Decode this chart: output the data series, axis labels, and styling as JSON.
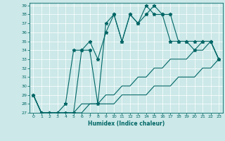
{
  "xlabel": "Humidex (Indice chaleur)",
  "bg_color": "#cce8e8",
  "line_color": "#006666",
  "grid_color": "#ffffff",
  "xlim": [
    -0.5,
    23.5
  ],
  "ylim": [
    27,
    39.3
  ],
  "yticks": [
    27,
    28,
    29,
    30,
    31,
    32,
    33,
    34,
    35,
    36,
    37,
    38,
    39
  ],
  "xticks": [
    0,
    1,
    2,
    3,
    4,
    5,
    6,
    7,
    8,
    9,
    10,
    11,
    12,
    13,
    14,
    15,
    16,
    17,
    18,
    19,
    20,
    21,
    22,
    23
  ],
  "line1_x": [
    0,
    1,
    2,
    3,
    4,
    5,
    6,
    7,
    8,
    9,
    10,
    11,
    12,
    13,
    14,
    15,
    16,
    17,
    18,
    19,
    20,
    21,
    22,
    23
  ],
  "line1_y": [
    29,
    27,
    27,
    27,
    27,
    27,
    27,
    28,
    28,
    28,
    28,
    29,
    29,
    29,
    29,
    30,
    30,
    30,
    31,
    31,
    31,
    32,
    32,
    33
  ],
  "line2_x": [
    0,
    1,
    2,
    3,
    4,
    5,
    6,
    7,
    8,
    9,
    10,
    11,
    12,
    13,
    14,
    15,
    16,
    17,
    18,
    19,
    20,
    21,
    22,
    23
  ],
  "line2_y": [
    29,
    27,
    27,
    27,
    27,
    27,
    28,
    28,
    28,
    29,
    29,
    30,
    30,
    31,
    31,
    32,
    32,
    33,
    33,
    33,
    34,
    34,
    35,
    33
  ],
  "line3_x": [
    0,
    1,
    2,
    3,
    4,
    5,
    6,
    7,
    8,
    9,
    10,
    11,
    12,
    13,
    14,
    15,
    16,
    17,
    18,
    19,
    20,
    21,
    22,
    23
  ],
  "line3_y": [
    29,
    27,
    27,
    27,
    27,
    27,
    34,
    34,
    28,
    37,
    38,
    35,
    38,
    37,
    39,
    38,
    38,
    35,
    35,
    35,
    34,
    35,
    35,
    33
  ],
  "line4_x": [
    0,
    1,
    2,
    3,
    4,
    5,
    6,
    7,
    8,
    9,
    10,
    11,
    12,
    13,
    14,
    15,
    16,
    17,
    18,
    19,
    20,
    21,
    22,
    23
  ],
  "line4_y": [
    29,
    27,
    27,
    27,
    28,
    34,
    34,
    35,
    33,
    36,
    38,
    35,
    38,
    37,
    38,
    39,
    38,
    38,
    35,
    35,
    35,
    35,
    35,
    33
  ],
  "marker": "*",
  "markersize": 3.5,
  "linewidth": 0.8
}
